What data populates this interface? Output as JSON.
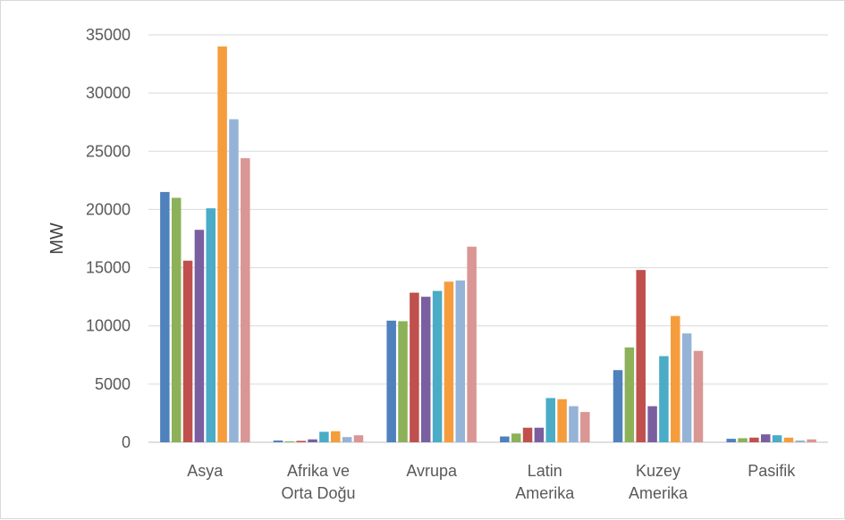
{
  "chart_data": {
    "type": "bar",
    "title": "",
    "xlabel": "",
    "ylabel": "MW",
    "ylim": [
      0,
      35000
    ],
    "yticks": [
      0,
      5000,
      10000,
      15000,
      20000,
      25000,
      30000,
      35000
    ],
    "grid": true,
    "legend": "none",
    "categories": [
      [
        "Asya"
      ],
      [
        "Afrika ve",
        "Orta Doğu"
      ],
      [
        "Avrupa"
      ],
      [
        "Latin",
        "Amerika"
      ],
      [
        "Kuzey",
        "Amerika"
      ],
      [
        "Pasifik"
      ]
    ],
    "series": [
      {
        "color": "#4f81bd",
        "values": [
          21500,
          150,
          10450,
          500,
          6200,
          300
        ]
      },
      {
        "color": "#8cb158",
        "values": [
          21000,
          80,
          10400,
          750,
          8150,
          350
        ]
      },
      {
        "color": "#c0504d",
        "values": [
          15600,
          120,
          12850,
          1250,
          14800,
          400
        ]
      },
      {
        "color": "#7a5fa0",
        "values": [
          18250,
          250,
          12500,
          1250,
          3100,
          680
        ]
      },
      {
        "color": "#4aacc6",
        "values": [
          20100,
          900,
          13000,
          3800,
          7400,
          600
        ]
      },
      {
        "color": "#f59d3d",
        "values": [
          34000,
          950,
          13800,
          3700,
          10850,
          400
        ]
      },
      {
        "color": "#95b3d7",
        "values": [
          27750,
          450,
          13900,
          3100,
          9350,
          150
        ]
      },
      {
        "color": "#d99694",
        "values": [
          24400,
          600,
          16800,
          2600,
          7850,
          250
        ]
      }
    ]
  }
}
